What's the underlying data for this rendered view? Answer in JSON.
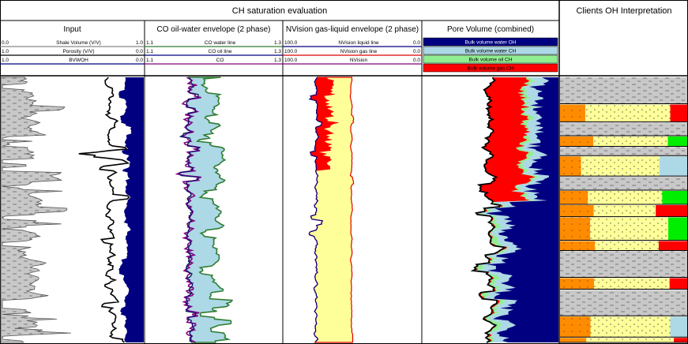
{
  "header": {
    "main_title": "CH saturation evaluation",
    "clients_title": "Clients OH Interpretation"
  },
  "chart_data": {
    "type": "well-log",
    "tracks": [
      {
        "title": "Input",
        "curves": [
          {
            "name": "Shale Volume (V/V)",
            "min": "0.0",
            "max": "1.0",
            "color": "#888888"
          },
          {
            "name": "Porosity (V/V)",
            "min": "1.0",
            "max": "0.0",
            "color": "#000000"
          },
          {
            "name": "BVWOH",
            "min": "1.0",
            "max": "0.0",
            "color": "#000080"
          }
        ]
      },
      {
        "title": "CO oil-water envelope (2 phase)",
        "curves": [
          {
            "name": "CO water line",
            "min": "1.1",
            "max": "1.3",
            "color": "#2e7d32"
          },
          {
            "name": "CO oil line",
            "min": "1.1",
            "max": "1.3",
            "color": "#000080"
          },
          {
            "name": "CO",
            "min": "1.1",
            "max": "1.3",
            "color": "#800080"
          }
        ]
      },
      {
        "title": "NVision gas-liquid envelope (2 phase)",
        "curves": [
          {
            "name": "NVision liquid line",
            "min": "100.0",
            "max": "0.0",
            "color": "#000080"
          },
          {
            "name": "NVision gas line",
            "min": "100.0",
            "max": "0.0",
            "color": "#e00000"
          },
          {
            "name": "NVision",
            "min": "100.0",
            "max": "0.0",
            "color": "#800080"
          }
        ]
      },
      {
        "title": "Pore Volume (combined)",
        "legend": [
          {
            "name": "Bulk volume water OH",
            "color": "#000080",
            "text": "#ffffff"
          },
          {
            "name": "Bulk volume water CH",
            "color": "#add8e6",
            "text": "#000000"
          },
          {
            "name": "Bulk volume oil CH",
            "color": "#90ee90",
            "text": "#000000"
          },
          {
            "name": "Bulk volume gas CH",
            "color": "#ff0000",
            "text": "#000000"
          }
        ]
      },
      {
        "title": "Clients OH Interpretation"
      }
    ]
  },
  "colors": {
    "bvw_oh": "#000080",
    "bvw_ch": "#add8e6",
    "oil_ch": "#90ee90",
    "gas_ch": "#ff0000",
    "nvision_fill": "#ffff99",
    "shale": "#c0c0c0",
    "sand": "#ffff99",
    "orange": "#ff8c00",
    "green": "#00ee00"
  }
}
